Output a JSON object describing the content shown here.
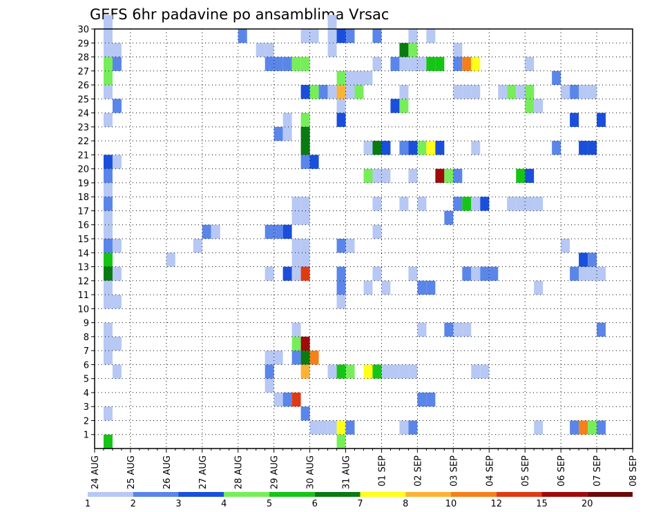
{
  "chart_data": {
    "type": "heatmap",
    "title": "GEFS 6hr padavine po ansamblima Vrsac",
    "xlabel": "",
    "ylabel": "",
    "x_tick_labels": [
      "24 AUG",
      "25 AUG",
      "26 AUG",
      "27 AUG",
      "28 AUG",
      "29 AUG",
      "30 AUG",
      "31 AUG",
      "01 SEP",
      "02 SEP",
      "03 SEP",
      "04 SEP",
      "05 SEP",
      "06 SEP",
      "07 SEP",
      "08 SEP"
    ],
    "x_range_days": [
      0,
      15
    ],
    "steps_per_day": 4,
    "y_tick_labels": [
      "1",
      "2",
      "3",
      "4",
      "5",
      "6",
      "7",
      "8",
      "9",
      "10",
      "11",
      "12",
      "13",
      "14",
      "15",
      "16",
      "17",
      "18",
      "19",
      "20",
      "21",
      "22",
      "23",
      "24",
      "25",
      "26",
      "27",
      "28",
      "29",
      "30"
    ],
    "y_range": [
      0,
      30
    ],
    "grid": true,
    "colorbar": {
      "labels": [
        "1",
        "2",
        "3",
        "4",
        "5",
        "6",
        "7",
        "8",
        "10",
        "12",
        "15",
        "20"
      ],
      "colors": [
        "#b7c8f5",
        "#5a86ea",
        "#1a4fdc",
        "#76ee5a",
        "#15c515",
        "#0a7a12",
        "#ffff1a",
        "#fbb236",
        "#f5801a",
        "#e03a14",
        "#a00a0a",
        "#6e0808"
      ]
    },
    "cells": [
      [
        1,
        30,
        0
      ],
      [
        1,
        29,
        0
      ],
      [
        1,
        28,
        0
      ],
      [
        2,
        28,
        0
      ],
      [
        1,
        27,
        3
      ],
      [
        2,
        27,
        1
      ],
      [
        1,
        26,
        3
      ],
      [
        1,
        25,
        0
      ],
      [
        2,
        24,
        1
      ],
      [
        1,
        23,
        0
      ],
      [
        1,
        20,
        2
      ],
      [
        2,
        20,
        0
      ],
      [
        1,
        19,
        1
      ],
      [
        1,
        18,
        0
      ],
      [
        1,
        17,
        1
      ],
      [
        1,
        16,
        0
      ],
      [
        1,
        15,
        0
      ],
      [
        1,
        14,
        1
      ],
      [
        2,
        14,
        0
      ],
      [
        1,
        13,
        4
      ],
      [
        1,
        12,
        5
      ],
      [
        2,
        12,
        0
      ],
      [
        1,
        11,
        0
      ],
      [
        1,
        10,
        0
      ],
      [
        2,
        10,
        0
      ],
      [
        1,
        8,
        0
      ],
      [
        1,
        7,
        0
      ],
      [
        2,
        7,
        0
      ],
      [
        1,
        6,
        0
      ],
      [
        2,
        5,
        0
      ],
      [
        1,
        2,
        0
      ],
      [
        1,
        0,
        4
      ],
      [
        8,
        13,
        0
      ],
      [
        11,
        14,
        0
      ],
      [
        12,
        15,
        1
      ],
      [
        13,
        15,
        0
      ],
      [
        16,
        29,
        1
      ],
      [
        18,
        28,
        0
      ],
      [
        19,
        28,
        0
      ],
      [
        19,
        27,
        1
      ],
      [
        20,
        27,
        1
      ],
      [
        21,
        27,
        1
      ],
      [
        22,
        27,
        3
      ],
      [
        23,
        27,
        3
      ],
      [
        19,
        15,
        1
      ],
      [
        20,
        15,
        1
      ],
      [
        19,
        12,
        0
      ],
      [
        19,
        6,
        0
      ],
      [
        20,
        6,
        0
      ],
      [
        19,
        5,
        1
      ],
      [
        19,
        4,
        0
      ],
      [
        20,
        3,
        0
      ],
      [
        21,
        3,
        1
      ],
      [
        22,
        3,
        9
      ],
      [
        20,
        22,
        1
      ],
      [
        21,
        22,
        0
      ],
      [
        21,
        23,
        0
      ],
      [
        23,
        23,
        3
      ],
      [
        23,
        22,
        5
      ],
      [
        23,
        21,
        5
      ],
      [
        23,
        20,
        1
      ],
      [
        24,
        20,
        2
      ],
      [
        23,
        25,
        2
      ],
      [
        24,
        25,
        3
      ],
      [
        25,
        25,
        1
      ],
      [
        26,
        25,
        0
      ],
      [
        21,
        15,
        2
      ],
      [
        21,
        12,
        2
      ],
      [
        22,
        12,
        0
      ],
      [
        23,
        12,
        9
      ],
      [
        22,
        8,
        0
      ],
      [
        22,
        7,
        3
      ],
      [
        23,
        7,
        10
      ],
      [
        22,
        6,
        1
      ],
      [
        23,
        6,
        5
      ],
      [
        24,
        6,
        8
      ],
      [
        23,
        5,
        7
      ],
      [
        22,
        17,
        0
      ],
      [
        23,
        17,
        0
      ],
      [
        22,
        16,
        0
      ],
      [
        23,
        16,
        0
      ],
      [
        22,
        14,
        0
      ],
      [
        23,
        14,
        0
      ],
      [
        22,
        13,
        0
      ],
      [
        23,
        13,
        0
      ],
      [
        23,
        29,
        0
      ],
      [
        24,
        29,
        0
      ],
      [
        23,
        2,
        1
      ],
      [
        24,
        1,
        0
      ],
      [
        25,
        1,
        0
      ],
      [
        26,
        1,
        0
      ],
      [
        26,
        30,
        0
      ],
      [
        26,
        29,
        0
      ],
      [
        26,
        28,
        0
      ],
      [
        27,
        29,
        2
      ],
      [
        28,
        29,
        1
      ],
      [
        27,
        25,
        7
      ],
      [
        27,
        26,
        3
      ],
      [
        28,
        26,
        0
      ],
      [
        29,
        26,
        0
      ],
      [
        30,
        26,
        0
      ],
      [
        28,
        25,
        0
      ],
      [
        29,
        25,
        3
      ],
      [
        27,
        24,
        0
      ],
      [
        27,
        23,
        2
      ],
      [
        30,
        19,
        3
      ],
      [
        31,
        19,
        0
      ],
      [
        32,
        19,
        0
      ],
      [
        27,
        14,
        1
      ],
      [
        28,
        14,
        0
      ],
      [
        27,
        12,
        1
      ],
      [
        27,
        11,
        1
      ],
      [
        27,
        10,
        0
      ],
      [
        26,
        5,
        0
      ],
      [
        27,
        5,
        4
      ],
      [
        28,
        5,
        3
      ],
      [
        27,
        1,
        6
      ],
      [
        28,
        1,
        1
      ],
      [
        27,
        0,
        3
      ],
      [
        31,
        29,
        1
      ],
      [
        31,
        27,
        0
      ],
      [
        30,
        21,
        0
      ],
      [
        31,
        21,
        5
      ],
      [
        32,
        21,
        2
      ],
      [
        31,
        17,
        0
      ],
      [
        31,
        15,
        0
      ],
      [
        31,
        12,
        0
      ],
      [
        30,
        11,
        0
      ],
      [
        32,
        11,
        0
      ],
      [
        30,
        5,
        6
      ],
      [
        31,
        5,
        4
      ],
      [
        32,
        5,
        0
      ],
      [
        33,
        5,
        0
      ],
      [
        34,
        5,
        0
      ],
      [
        35,
        5,
        0
      ],
      [
        33,
        27,
        1
      ],
      [
        34,
        27,
        0
      ],
      [
        35,
        27,
        0
      ],
      [
        36,
        27,
        0
      ],
      [
        35,
        29,
        0
      ],
      [
        34,
        28,
        5
      ],
      [
        35,
        28,
        3
      ],
      [
        33,
        24,
        2
      ],
      [
        34,
        24,
        3
      ],
      [
        34,
        25,
        0
      ],
      [
        34,
        21,
        1
      ],
      [
        35,
        21,
        2
      ],
      [
        36,
        21,
        3
      ],
      [
        37,
        21,
        6
      ],
      [
        38,
        21,
        2
      ],
      [
        35,
        19,
        0
      ],
      [
        34,
        17,
        0
      ],
      [
        36,
        17,
        0
      ],
      [
        35,
        12,
        0
      ],
      [
        36,
        11,
        1
      ],
      [
        37,
        11,
        1
      ],
      [
        36,
        8,
        0
      ],
      [
        36,
        3,
        1
      ],
      [
        37,
        3,
        1
      ],
      [
        34,
        1,
        0
      ],
      [
        35,
        1,
        1
      ],
      [
        37,
        27,
        4
      ],
      [
        38,
        27,
        4
      ],
      [
        37,
        29,
        0
      ],
      [
        38,
        19,
        10
      ],
      [
        39,
        19,
        3
      ],
      [
        40,
        19,
        1
      ],
      [
        39,
        16,
        1
      ],
      [
        39,
        8,
        1
      ],
      [
        40,
        28,
        0
      ],
      [
        40,
        27,
        1
      ],
      [
        41,
        27,
        8
      ],
      [
        42,
        27,
        6
      ],
      [
        40,
        25,
        0
      ],
      [
        41,
        25,
        0
      ],
      [
        42,
        25,
        0
      ],
      [
        42,
        21,
        0
      ],
      [
        40,
        17,
        1
      ],
      [
        41,
        17,
        4
      ],
      [
        42,
        17,
        0
      ],
      [
        43,
        17,
        2
      ],
      [
        41,
        12,
        1
      ],
      [
        42,
        12,
        0
      ],
      [
        43,
        12,
        1
      ],
      [
        44,
        12,
        1
      ],
      [
        40,
        8,
        0
      ],
      [
        41,
        8,
        0
      ],
      [
        42,
        5,
        0
      ],
      [
        43,
        5,
        0
      ],
      [
        45,
        25,
        0
      ],
      [
        46,
        25,
        3
      ],
      [
        47,
        25,
        0
      ],
      [
        48,
        25,
        3
      ],
      [
        48,
        24,
        3
      ],
      [
        49,
        24,
        0
      ],
      [
        47,
        19,
        4
      ],
      [
        48,
        19,
        2
      ],
      [
        46,
        17,
        0
      ],
      [
        47,
        17,
        0
      ],
      [
        48,
        17,
        0
      ],
      [
        49,
        17,
        0
      ],
      [
        48,
        27,
        0
      ],
      [
        49,
        11,
        0
      ],
      [
        52,
        14,
        0
      ],
      [
        52,
        25,
        0
      ],
      [
        53,
        25,
        1
      ],
      [
        54,
        25,
        0
      ],
      [
        51,
        26,
        1
      ],
      [
        51,
        21,
        1
      ],
      [
        54,
        21,
        2
      ],
      [
        55,
        21,
        2
      ],
      [
        54,
        13,
        2
      ],
      [
        55,
        13,
        1
      ],
      [
        53,
        12,
        1
      ],
      [
        53,
        1,
        1
      ],
      [
        54,
        1,
        8
      ],
      [
        55,
        1,
        3
      ],
      [
        56,
        1,
        1
      ],
      [
        55,
        25,
        0
      ],
      [
        53,
        23,
        2
      ],
      [
        54,
        12,
        0
      ],
      [
        55,
        12,
        0
      ],
      [
        56,
        12,
        0
      ],
      [
        49,
        1,
        0
      ],
      [
        56,
        23,
        2
      ],
      [
        56,
        8,
        1
      ]
    ]
  }
}
